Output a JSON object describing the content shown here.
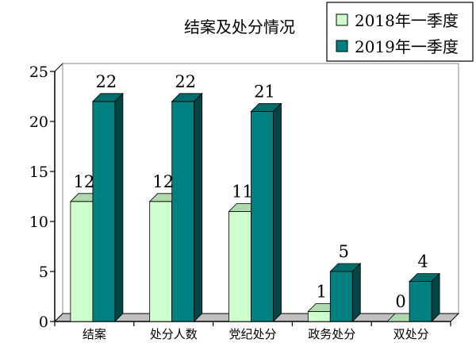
{
  "chart_data": {
    "type": "bar",
    "title": "结案及处分情况",
    "categories": [
      "结案",
      "处分人数",
      "党纪处分",
      "政务处分",
      "双处分"
    ],
    "series": [
      {
        "name": "2018年一季度",
        "values": [
          12,
          12,
          11,
          1,
          0
        ],
        "color": "#ccffcc"
      },
      {
        "name": "2019年一季度",
        "values": [
          22,
          22,
          21,
          5,
          4
        ],
        "color": "#008080"
      }
    ],
    "ylim": [
      0,
      25
    ],
    "yticks": [
      "0",
      "5",
      "10",
      "15",
      "20",
      "25"
    ],
    "grid": false,
    "legend_position": "top-right",
    "three_d": true
  }
}
